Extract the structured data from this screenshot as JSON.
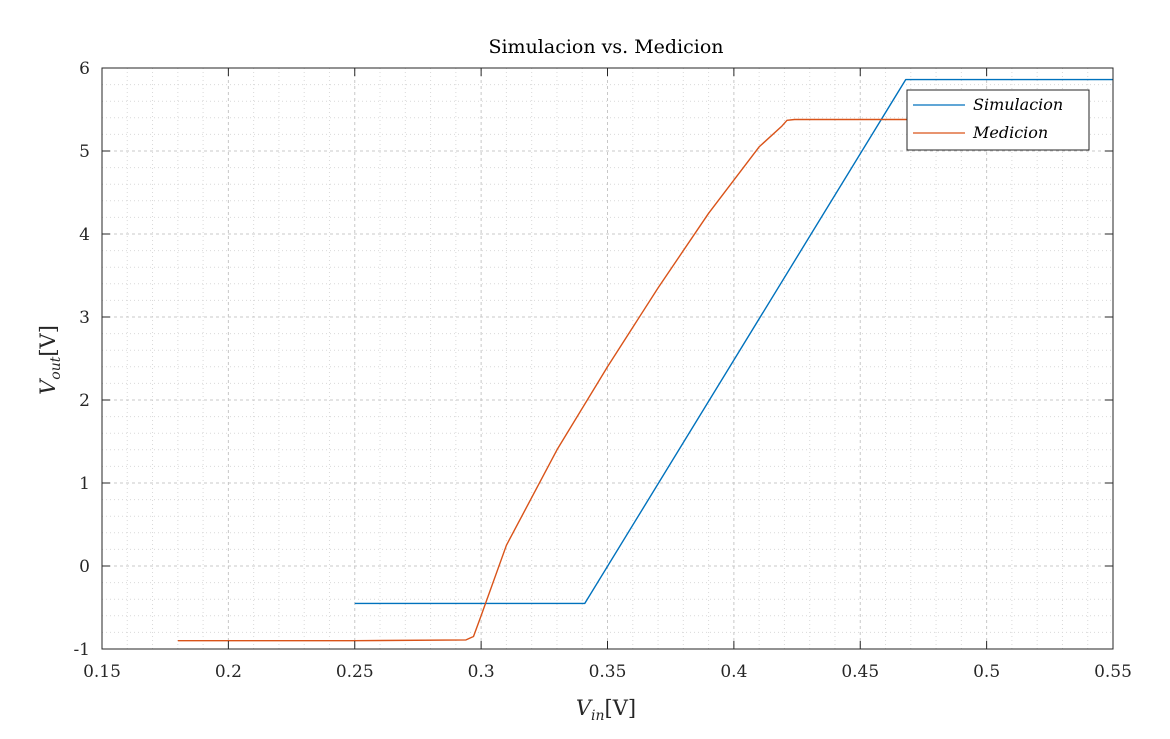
{
  "chart_data": {
    "type": "line",
    "title": "Simulacion vs. Medicion",
    "xlabel": {
      "main": "V",
      "sub": "in",
      "unit": "[V]"
    },
    "ylabel": {
      "main": "V",
      "sub": "out",
      "unit": "[V]"
    },
    "xlim": [
      0.15,
      0.55
    ],
    "ylim": [
      -1,
      6
    ],
    "xticks": [
      0.15,
      0.2,
      0.25,
      0.3,
      0.35,
      0.4,
      0.45,
      0.5,
      0.55
    ],
    "xtick_labels": [
      "0.15",
      "0.2",
      "0.25",
      "0.3",
      "0.35",
      "0.4",
      "0.45",
      "0.5",
      "0.55"
    ],
    "yticks": [
      -1,
      0,
      1,
      2,
      3,
      4,
      5,
      6
    ],
    "ytick_labels": [
      "-1",
      "0",
      "1",
      "2",
      "3",
      "4",
      "5",
      "6"
    ],
    "grid": true,
    "minor_grid": true,
    "legend_position": "top-right",
    "series": [
      {
        "name": "Simulacion",
        "color": "#0072BD",
        "x": [
          0.25,
          0.341,
          0.468,
          0.55
        ],
        "y": [
          -0.45,
          -0.45,
          5.86,
          5.86
        ]
      },
      {
        "name": "Medicion",
        "color": "#D95319",
        "x": [
          0.18,
          0.25,
          0.294,
          0.297,
          0.3,
          0.31,
          0.33,
          0.35,
          0.37,
          0.39,
          0.41,
          0.419,
          0.421,
          0.424,
          0.47
        ],
        "y": [
          -0.9,
          -0.9,
          -0.89,
          -0.85,
          -0.6,
          0.25,
          1.4,
          2.4,
          3.35,
          4.25,
          5.05,
          5.3,
          5.37,
          5.38,
          5.38
        ]
      }
    ]
  }
}
